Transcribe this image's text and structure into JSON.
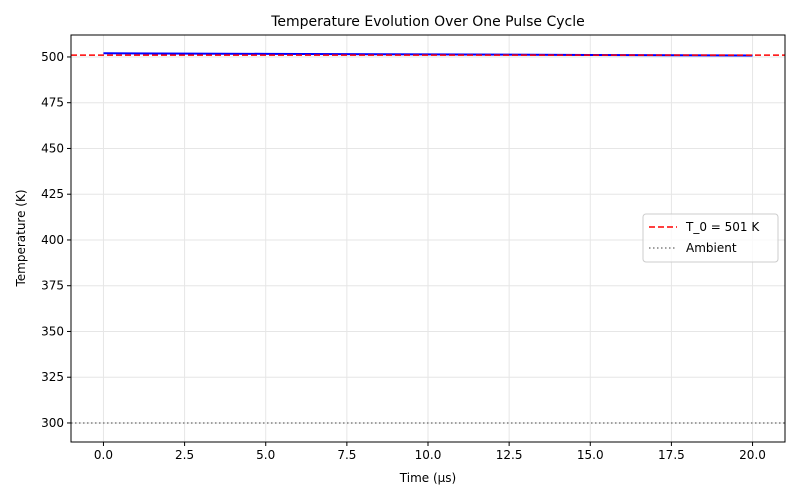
{
  "chart_data": {
    "type": "line",
    "title": "Temperature Evolution Over One Pulse Cycle",
    "xlabel": "Time (µs)",
    "ylabel": "Temperature (K)",
    "xlim": [
      -1,
      21
    ],
    "ylim": [
      289.6,
      512
    ],
    "grid": true,
    "legend_placement": "center-right",
    "xticks": [
      "0.0",
      "2.5",
      "5.0",
      "7.5",
      "10.0",
      "12.5",
      "15.0",
      "17.5",
      "20.0"
    ],
    "xtick_values": [
      0,
      2.5,
      5,
      7.5,
      10,
      12.5,
      15,
      17.5,
      20
    ],
    "yticks": [
      "300",
      "325",
      "350",
      "375",
      "400",
      "425",
      "450",
      "475",
      "500"
    ],
    "ytick_values": [
      300,
      325,
      350,
      375,
      400,
      425,
      450,
      475,
      500
    ],
    "series": [
      {
        "x": [
          0,
          5,
          10,
          15,
          20
        ],
        "y": [
          502.0,
          501.7,
          501.4,
          501.1,
          500.8
        ],
        "color": "#0000ff",
        "style": "solid"
      },
      {
        "name": "T_0 = 501 K",
        "hline": 501,
        "color": "#ff0000",
        "style": "dashed"
      },
      {
        "name": "Ambient",
        "hline": 300,
        "color": "#808080",
        "style": "dotted"
      }
    ]
  }
}
